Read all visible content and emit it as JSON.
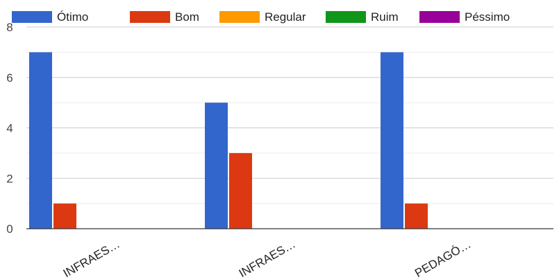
{
  "chart_data": {
    "type": "bar",
    "title": "",
    "xlabel": "",
    "ylabel": "",
    "ylim": [
      0,
      8
    ],
    "yticks": [
      0,
      2,
      4,
      6,
      8
    ],
    "grid": true,
    "legend_position": "top",
    "categories": [
      "INFRAES…",
      "INFRAES…",
      "PEDAGÓ…"
    ],
    "series": [
      {
        "name": "Ótimo",
        "color": "#3366cc",
        "values": [
          7,
          5,
          7
        ]
      },
      {
        "name": "Bom",
        "color": "#dc3912",
        "values": [
          1,
          3,
          1
        ]
      },
      {
        "name": "Regular",
        "color": "#ff9900",
        "values": [
          0,
          0,
          0
        ]
      },
      {
        "name": "Ruim",
        "color": "#109618",
        "values": [
          0,
          0,
          0
        ]
      },
      {
        "name": "Péssimo",
        "color": "#990099",
        "values": [
          0,
          0,
          0
        ]
      }
    ]
  }
}
